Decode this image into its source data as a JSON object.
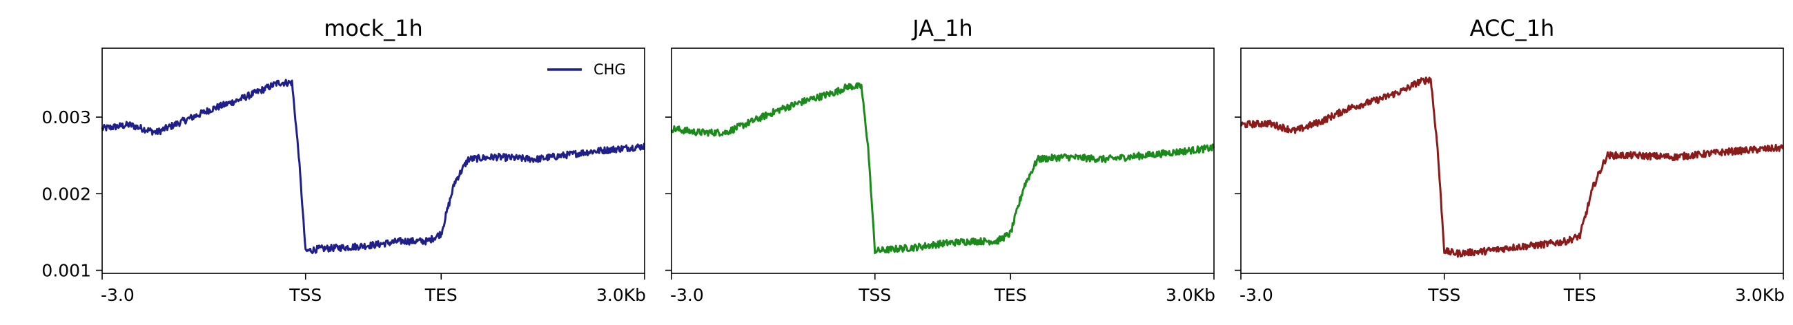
{
  "chart_data": {
    "type": "line",
    "ylim": [
      0.00096,
      0.0039
    ],
    "yticks": [
      {
        "value": 0.001,
        "label": "0.001"
      },
      {
        "value": 0.002,
        "label": "0.002"
      },
      {
        "value": 0.003,
        "label": "0.003"
      }
    ],
    "x_domain": [
      0,
      400
    ],
    "xticks": [
      {
        "pos": 0,
        "label": "-3.0"
      },
      {
        "pos": 150,
        "label": "TSS"
      },
      {
        "pos": 250,
        "label": "TES"
      },
      {
        "pos": 400,
        "label": "3.0Kb"
      }
    ],
    "grid": false,
    "legend": {
      "entries": [
        "CHG"
      ],
      "location": "upper right of first panel"
    },
    "panels": [
      {
        "title": "mock_1h",
        "color": "#1f1f8c",
        "series": [
          {
            "name": "CHG",
            "x": [
              0,
              20,
              40,
              60,
              80,
              100,
              120,
              130,
              140,
              145,
              150,
              160,
              180,
              200,
              220,
              240,
              250,
              260,
              270,
              290,
              320,
              360,
              400
            ],
            "y": [
              0.00285,
              0.0029,
              0.0028,
              0.00295,
              0.0031,
              0.00322,
              0.00337,
              0.00345,
              0.00345,
              0.0025,
              0.00125,
              0.00128,
              0.0013,
              0.00133,
              0.00138,
              0.00138,
              0.00148,
              0.00215,
              0.00245,
              0.00248,
              0.00245,
              0.00255,
              0.00262
            ]
          }
        ]
      },
      {
        "title": "JA_1h",
        "color": "#1a8a1a",
        "series": [
          {
            "name": "CHG",
            "x": [
              0,
              20,
              40,
              60,
              80,
              100,
              120,
              130,
              140,
              145,
              150,
              160,
              180,
              200,
              220,
              240,
              250,
              260,
              270,
              290,
              320,
              360,
              400
            ],
            "y": [
              0.00285,
              0.0028,
              0.0028,
              0.00295,
              0.0031,
              0.00322,
              0.00332,
              0.0034,
              0.0034,
              0.0026,
              0.00125,
              0.00127,
              0.0013,
              0.00135,
              0.00138,
              0.00138,
              0.00148,
              0.0021,
              0.00245,
              0.00248,
              0.00245,
              0.00252,
              0.0026
            ]
          }
        ]
      },
      {
        "title": "ACC_1h",
        "color": "#8b1a1a",
        "series": [
          {
            "name": "CHG",
            "x": [
              0,
              20,
              40,
              60,
              80,
              100,
              120,
              130,
              140,
              145,
              150,
              160,
              180,
              200,
              220,
              240,
              250,
              260,
              270,
              290,
              320,
              360,
              400
            ],
            "y": [
              0.0029,
              0.00292,
              0.00282,
              0.00295,
              0.00312,
              0.00322,
              0.00335,
              0.00345,
              0.0035,
              0.0026,
              0.00125,
              0.00122,
              0.00125,
              0.0013,
              0.00133,
              0.00138,
              0.00145,
              0.0021,
              0.0025,
              0.0025,
              0.00248,
              0.00255,
              0.0026
            ]
          }
        ]
      }
    ]
  }
}
